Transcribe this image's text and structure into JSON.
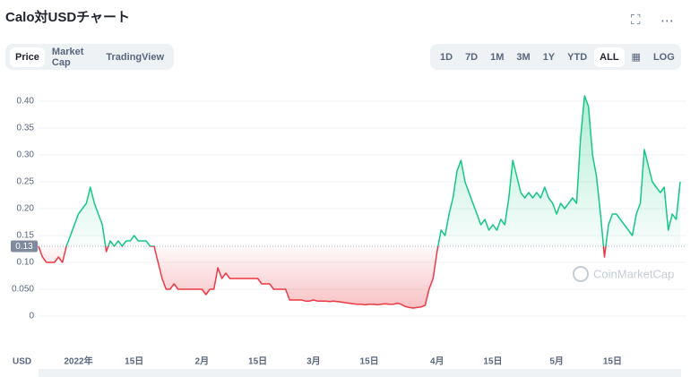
{
  "tabs": [
    "Price",
    "Market Cap",
    "TradingView"
  ],
  "ranges": [
    "1D",
    "7D",
    "1M",
    "3M",
    "1Y",
    "YTD",
    "ALL"
  ],
  "log_button": "LOG",
  "chart_data": {
    "type": "line",
    "title": "Calo対USDチャート",
    "x_label": "USD",
    "watermark": "CoinMarketCap",
    "up_color": "#16c784",
    "down_color": "#ea3943",
    "grid": true,
    "baseline": 0.13,
    "ylim": [
      -0.065,
      0.43
    ],
    "yticks": [
      {
        "value": 0.4,
        "label": "0.40"
      },
      0.35,
      {
        "value": 0.3,
        "label": "0.30"
      },
      0.25,
      {
        "value": 0.2,
        "label": "0.20"
      },
      0.15,
      {
        "value": 0.1,
        "label": "0.10"
      },
      {
        "value": 0.05,
        "label": "0.050"
      },
      0
    ],
    "categories": [
      null,
      null,
      null,
      null,
      null,
      null,
      null,
      null,
      null,
      null,
      "2022年",
      null,
      null,
      null,
      null,
      null,
      null,
      null,
      null,
      null,
      null,
      null,
      null,
      null,
      "15日",
      null,
      null,
      null,
      null,
      null,
      null,
      null,
      null,
      null,
      null,
      null,
      null,
      null,
      null,
      null,
      null,
      "2月",
      null,
      null,
      null,
      null,
      null,
      null,
      null,
      null,
      null,
      null,
      null,
      null,
      null,
      "15日",
      null,
      null,
      null,
      null,
      null,
      null,
      null,
      null,
      null,
      null,
      null,
      null,
      null,
      "3月",
      null,
      null,
      null,
      null,
      null,
      null,
      null,
      null,
      null,
      null,
      null,
      null,
      null,
      "15日",
      null,
      null,
      null,
      null,
      null,
      null,
      null,
      null,
      null,
      null,
      null,
      null,
      null,
      null,
      null,
      null,
      "4月",
      null,
      null,
      null,
      null,
      null,
      null,
      null,
      null,
      null,
      null,
      null,
      null,
      null,
      "15日",
      null,
      null,
      null,
      null,
      null,
      null,
      null,
      null,
      null,
      null,
      null,
      null,
      null,
      null,
      null,
      "5月",
      null,
      null,
      null,
      null,
      null,
      null,
      null,
      null,
      null,
      null,
      null,
      null,
      null,
      "15日",
      null,
      null,
      null,
      null,
      null,
      null,
      null,
      null,
      null,
      null,
      null,
      null,
      null,
      null,
      null,
      null,
      null
    ],
    "values": [
      0.13,
      0.11,
      0.1,
      0.1,
      0.1,
      0.11,
      0.1,
      0.13,
      0.15,
      0.17,
      0.19,
      0.2,
      0.21,
      0.24,
      0.21,
      0.19,
      0.17,
      0.12,
      0.14,
      0.13,
      0.14,
      0.13,
      0.14,
      0.14,
      0.15,
      0.14,
      0.14,
      0.14,
      0.13,
      0.13,
      0.1,
      0.07,
      0.05,
      0.05,
      0.06,
      0.05,
      0.05,
      0.05,
      0.05,
      0.05,
      0.05,
      0.05,
      0.04,
      0.05,
      0.05,
      0.09,
      0.07,
      0.08,
      0.07,
      0.07,
      0.07,
      0.07,
      0.07,
      0.07,
      0.07,
      0.07,
      0.06,
      0.06,
      0.06,
      0.05,
      0.05,
      0.05,
      0.05,
      0.03,
      0.03,
      0.03,
      0.03,
      0.028,
      0.028,
      0.03,
      0.028,
      0.028,
      0.028,
      0.027,
      0.028,
      0.027,
      0.026,
      0.025,
      0.024,
      0.023,
      0.022,
      0.022,
      0.021,
      0.022,
      0.022,
      0.021,
      0.022,
      0.023,
      0.022,
      0.022,
      0.024,
      0.022,
      0.018,
      0.016,
      0.015,
      0.016,
      0.017,
      0.02,
      0.05,
      0.07,
      0.12,
      0.16,
      0.15,
      0.19,
      0.22,
      0.27,
      0.29,
      0.25,
      0.23,
      0.21,
      0.19,
      0.17,
      0.18,
      0.16,
      0.17,
      0.16,
      0.18,
      0.17,
      0.22,
      0.29,
      0.26,
      0.23,
      0.22,
      0.23,
      0.22,
      0.23,
      0.22,
      0.24,
      0.22,
      0.21,
      0.19,
      0.21,
      0.2,
      0.21,
      0.22,
      0.21,
      0.33,
      0.41,
      0.39,
      0.3,
      0.26,
      0.19,
      0.11,
      0.17,
      0.19,
      0.19,
      0.18,
      0.17,
      0.16,
      0.15,
      0.19,
      0.21,
      0.31,
      0.28,
      0.25,
      0.24,
      0.23,
      0.24,
      0.16,
      0.19,
      0.18,
      0.25
    ]
  }
}
